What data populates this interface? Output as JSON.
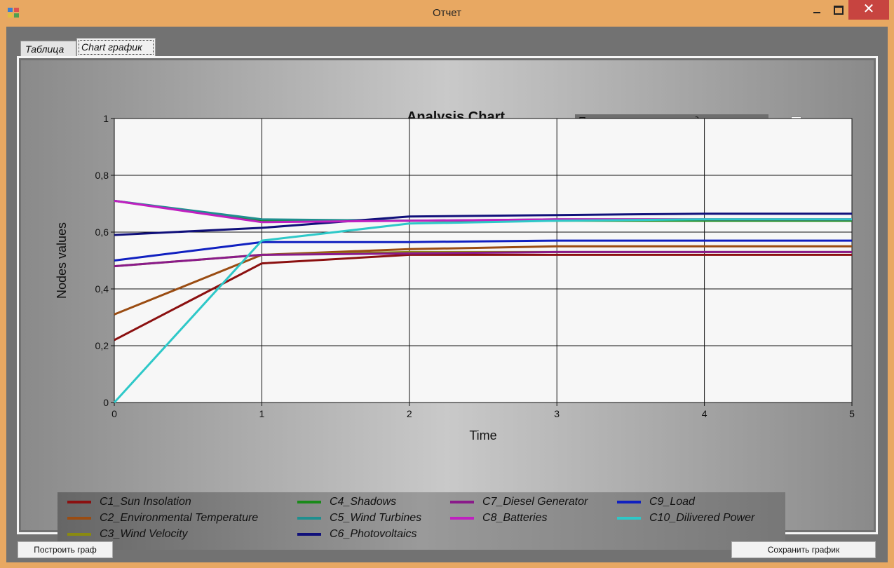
{
  "window": {
    "title": "Отчет",
    "close_glyph": "✕"
  },
  "tabs": [
    {
      "label": "Таблица",
      "selected": false
    },
    {
      "label": "Chart график",
      "selected": true
    }
  ],
  "outputs_toggle": {
    "label": "Показать только выходные значения",
    "checked": false
  },
  "buttons": {
    "build": "Построить граф",
    "save": "Сохранить график"
  },
  "chart_data": {
    "type": "line",
    "title": "Analysis Chart",
    "xlabel": "Time",
    "ylabel": "Nodes values",
    "xlim": [
      0,
      5
    ],
    "ylim": [
      0,
      1
    ],
    "x": [
      0,
      1,
      2,
      3,
      4,
      5
    ],
    "x_ticks": [
      "0",
      "1",
      "2",
      "3",
      "4",
      "5"
    ],
    "y_ticks": [
      "0",
      "0,2",
      "0,4",
      "0,6",
      "0,8",
      "1"
    ],
    "grid": true,
    "legend_position": "bottom",
    "series": [
      {
        "name": "C1_Sun Insolation",
        "color": "#8b1010",
        "values": [
          0.22,
          0.49,
          0.52,
          0.52,
          0.52,
          0.52
        ]
      },
      {
        "name": "C2_Environmental Temperature",
        "color": "#9a4c12",
        "values": [
          0.31,
          0.52,
          0.54,
          0.55,
          0.55,
          0.55
        ]
      },
      {
        "name": "C3_Wind Velocity",
        "color": "#8a8a10",
        "values": [
          0.48,
          0.52,
          0.53,
          0.53,
          0.53,
          0.53
        ]
      },
      {
        "name": "C4_Shadows",
        "color": "#1a8a1a",
        "values": [
          0.71,
          0.64,
          0.64,
          0.64,
          0.64,
          0.64
        ]
      },
      {
        "name": "C5_Wind Turbines",
        "color": "#1f8f8f",
        "values": [
          0.71,
          0.645,
          0.64,
          0.645,
          0.645,
          0.645
        ]
      },
      {
        "name": "C6_Photovoltaics",
        "color": "#10107a",
        "values": [
          0.59,
          0.615,
          0.655,
          0.66,
          0.665,
          0.665
        ]
      },
      {
        "name": "C7_Diesel Generator",
        "color": "#8a1a8a",
        "values": [
          0.48,
          0.52,
          0.525,
          0.53,
          0.53,
          0.53
        ]
      },
      {
        "name": "C8_Batteries",
        "color": "#c020c0",
        "values": [
          0.71,
          0.635,
          0.64,
          0.645,
          0.645,
          0.645
        ]
      },
      {
        "name": "C9_Load",
        "color": "#1020c0",
        "values": [
          0.5,
          0.565,
          0.565,
          0.57,
          0.57,
          0.57
        ]
      },
      {
        "name": "C10_Dilivered Power",
        "color": "#2ec8c8",
        "values": [
          0.0,
          0.57,
          0.63,
          0.64,
          0.645,
          0.645
        ]
      }
    ]
  }
}
